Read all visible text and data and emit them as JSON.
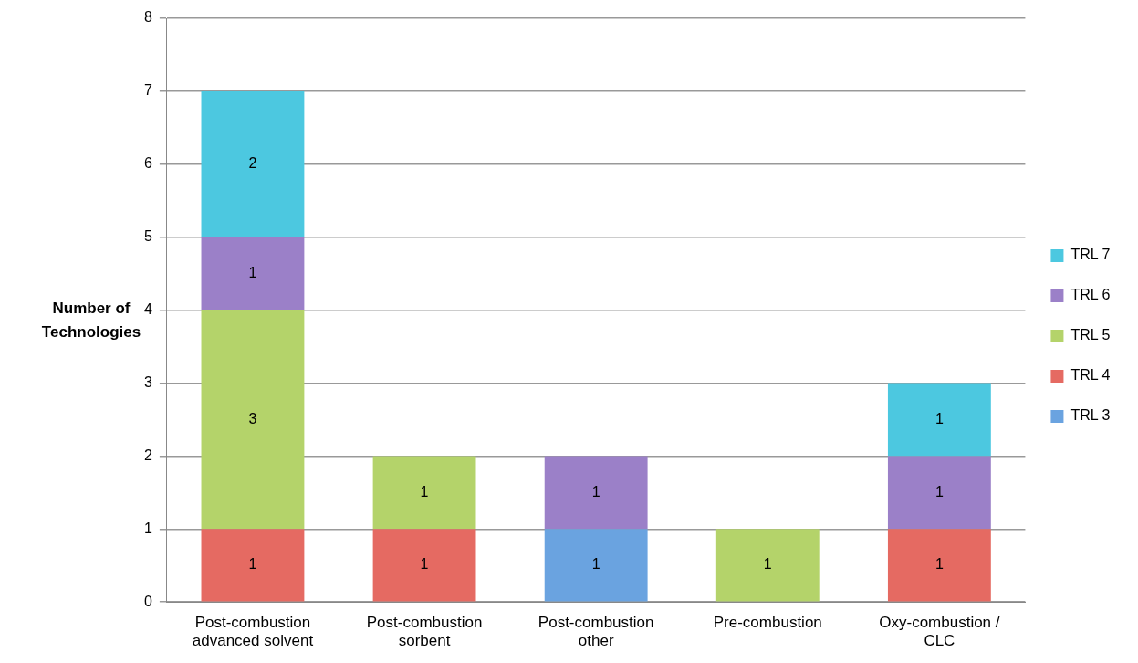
{
  "chart_data": {
    "type": "bar",
    "stacked": true,
    "ylabel": "Number of Technologies",
    "categories": [
      "Post-combustion advanced solvent",
      "Post-combustion sorbent",
      "Post-combustion other",
      "Pre-combustion",
      "Oxy-combustion / CLC"
    ],
    "series": [
      {
        "name": "TRL 3",
        "color": "#6aa3e0",
        "values": [
          null,
          null,
          1,
          null,
          null
        ]
      },
      {
        "name": "TRL 4",
        "color": "#e56a62",
        "values": [
          1,
          1,
          null,
          null,
          1
        ]
      },
      {
        "name": "TRL 5",
        "color": "#b4d36a",
        "values": [
          3,
          1,
          null,
          1,
          null
        ]
      },
      {
        "name": "TRL 6",
        "color": "#9b80c8",
        "values": [
          1,
          null,
          1,
          null,
          1
        ]
      },
      {
        "name": "TRL 7",
        "color": "#4cc8e0",
        "values": [
          2,
          null,
          null,
          null,
          1
        ]
      }
    ],
    "ylim": [
      0,
      8
    ],
    "yticks": [
      0,
      1,
      2,
      3,
      4,
      5,
      6,
      7,
      8
    ],
    "grid": "y",
    "legend": "right",
    "data_labels": true
  }
}
